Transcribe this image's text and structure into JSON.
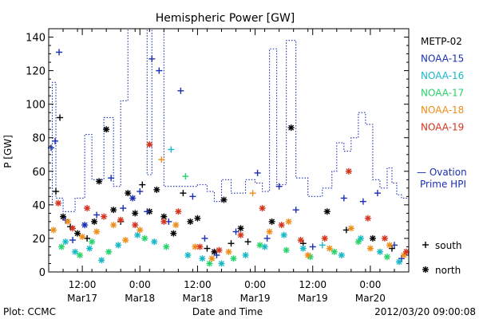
{
  "chart_data": {
    "type": "scatter",
    "title": "Hemispheric Power [GW]",
    "xlabel": "Date and Time",
    "ylabel": "P [GW]",
    "ylim": [
      0,
      145
    ],
    "yticks": [
      0,
      20,
      40,
      60,
      80,
      100,
      120,
      140
    ],
    "xlim": [
      "2012-03-17T05:00",
      "2012-03-20T08:00"
    ],
    "xticks": [
      {
        "time": "2012-03-17T12:00",
        "top": "12:00",
        "bottom": "Mar17"
      },
      {
        "time": "2012-03-18T00:00",
        "top": "0:00",
        "bottom": "Mar18"
      },
      {
        "time": "2012-03-18T12:00",
        "top": "12:00",
        "bottom": "Mar18"
      },
      {
        "time": "2012-03-19T00:00",
        "top": "0:00",
        "bottom": "Mar19"
      },
      {
        "time": "2012-03-19T12:00",
        "top": "12:00",
        "bottom": "Mar19"
      },
      {
        "time": "2012-03-20T00:00",
        "top": "0:00",
        "bottom": "Mar20"
      }
    ],
    "legend_placement": "right",
    "series": [
      {
        "name": "METP-02",
        "color": "#000000",
        "points": [
          [
            "2012-03-17T06:30",
            48,
            "s"
          ],
          [
            "2012-03-17T07:20",
            92,
            "s"
          ],
          [
            "2012-03-17T08:00",
            33,
            "n"
          ],
          [
            "2012-03-17T09:30",
            27,
            "s"
          ],
          [
            "2012-03-17T11:00",
            23,
            "n"
          ],
          [
            "2012-03-17T13:00",
            20,
            "s"
          ],
          [
            "2012-03-17T14:30",
            30,
            "n"
          ],
          [
            "2012-03-17T15:30",
            54,
            "n"
          ],
          [
            "2012-03-17T17:00",
            85,
            "n"
          ],
          [
            "2012-03-17T18:30",
            37,
            "n"
          ],
          [
            "2012-03-17T20:00",
            30,
            "s"
          ],
          [
            "2012-03-17T21:30",
            47,
            "n"
          ],
          [
            "2012-03-17T23:00",
            35,
            "n"
          ],
          [
            "2012-03-18T00:30",
            52,
            "s"
          ],
          [
            "2012-03-18T02:00",
            36,
            "n"
          ],
          [
            "2012-03-18T03:30",
            49,
            "n"
          ],
          [
            "2012-03-18T05:00",
            33,
            "n"
          ],
          [
            "2012-03-18T07:00",
            23,
            "n"
          ],
          [
            "2012-03-18T09:00",
            47,
            "s"
          ],
          [
            "2012-03-18T10:30",
            30,
            "n"
          ],
          [
            "2012-03-18T12:00",
            32,
            "n"
          ],
          [
            "2012-03-18T14:00",
            14,
            "s"
          ],
          [
            "2012-03-18T15:30",
            12,
            "n"
          ],
          [
            "2012-03-18T17:30",
            43,
            "n"
          ],
          [
            "2012-03-18T19:00",
            17,
            "s"
          ],
          [
            "2012-03-18T21:00",
            26,
            "n"
          ],
          [
            "2012-03-18T22:30",
            18,
            "s"
          ],
          [
            "2012-03-19T03:30",
            30,
            "n"
          ],
          [
            "2012-03-19T07:30",
            86,
            "n"
          ],
          [
            "2012-03-19T10:00",
            17,
            "s"
          ],
          [
            "2012-03-19T15:00",
            36,
            "n"
          ],
          [
            "2012-03-19T19:00",
            25,
            "s"
          ],
          [
            "2012-03-20T00:30",
            20,
            "n"
          ],
          [
            "2012-03-20T04:30",
            14,
            "s"
          ]
        ]
      },
      {
        "name": "NOAA-15",
        "color": "#1a2fb4",
        "points": [
          [
            "2012-03-17T05:30",
            74,
            "s"
          ],
          [
            "2012-03-17T06:20",
            78,
            "s"
          ],
          [
            "2012-03-17T07:10",
            131,
            "s"
          ],
          [
            "2012-03-17T08:30",
            31,
            "s"
          ],
          [
            "2012-03-17T10:00",
            19,
            "s"
          ],
          [
            "2012-03-17T12:30",
            28,
            "n"
          ],
          [
            "2012-03-17T15:00",
            34,
            "s"
          ],
          [
            "2012-03-17T18:00",
            56,
            "s"
          ],
          [
            "2012-03-17T20:30",
            38,
            "s"
          ],
          [
            "2012-03-17T22:30",
            44,
            "n"
          ],
          [
            "2012-03-18T00:00",
            48,
            "s"
          ],
          [
            "2012-03-18T01:30",
            36,
            "s"
          ],
          [
            "2012-03-18T02:30",
            127,
            "s"
          ],
          [
            "2012-03-18T04:00",
            120,
            "s"
          ],
          [
            "2012-03-18T06:00",
            30,
            "s"
          ],
          [
            "2012-03-18T08:30",
            108,
            "s"
          ],
          [
            "2012-03-18T11:00",
            45,
            "s"
          ],
          [
            "2012-03-18T13:30",
            20,
            "s"
          ],
          [
            "2012-03-18T16:00",
            10,
            "s"
          ],
          [
            "2012-03-18T20:00",
            24,
            "s"
          ],
          [
            "2012-03-19T00:30",
            59,
            "s"
          ],
          [
            "2012-03-19T02:30",
            20,
            "s"
          ],
          [
            "2012-03-19T05:00",
            51,
            "s"
          ],
          [
            "2012-03-19T08:30",
            37,
            "s"
          ],
          [
            "2012-03-19T12:00",
            15,
            "s"
          ],
          [
            "2012-03-19T18:30",
            44,
            "s"
          ],
          [
            "2012-03-19T22:30",
            42,
            "s"
          ],
          [
            "2012-03-20T01:30",
            47,
            "s"
          ],
          [
            "2012-03-20T05:00",
            16,
            "s"
          ],
          [
            "2012-03-20T06:30",
            8,
            "s"
          ]
        ]
      },
      {
        "name": "NOAA-16",
        "color": "#17b9c8",
        "points": [
          [
            "2012-03-17T08:30",
            18,
            "n"
          ],
          [
            "2012-03-17T10:30",
            12,
            "n"
          ],
          [
            "2012-03-17T13:30",
            14,
            "n"
          ],
          [
            "2012-03-17T16:00",
            7,
            "n"
          ],
          [
            "2012-03-17T19:30",
            16,
            "n"
          ],
          [
            "2012-03-17T23:30",
            22,
            "n"
          ],
          [
            "2012-03-18T03:00",
            18,
            "n"
          ],
          [
            "2012-03-18T06:30",
            73,
            "s"
          ],
          [
            "2012-03-18T10:00",
            10,
            "n"
          ],
          [
            "2012-03-18T13:00",
            8,
            "n"
          ],
          [
            "2012-03-18T17:00",
            5,
            "n"
          ],
          [
            "2012-03-18T22:00",
            10,
            "n"
          ],
          [
            "2012-03-19T02:00",
            15,
            "n"
          ],
          [
            "2012-03-19T06:00",
            22,
            "n"
          ],
          [
            "2012-03-19T10:00",
            14,
            "n"
          ],
          [
            "2012-03-19T14:00",
            16,
            "s"
          ],
          [
            "2012-03-19T18:00",
            10,
            "n"
          ],
          [
            "2012-03-19T22:00",
            20,
            "n"
          ],
          [
            "2012-03-20T02:00",
            12,
            "n"
          ],
          [
            "2012-03-20T06:00",
            6,
            "n"
          ]
        ]
      },
      {
        "name": "NOAA-17",
        "color": "#27d36a",
        "points": [
          [
            "2012-03-17T07:40",
            15,
            "n"
          ],
          [
            "2012-03-17T11:30",
            10,
            "n"
          ],
          [
            "2012-03-17T14:00",
            18,
            "n"
          ],
          [
            "2012-03-17T17:30",
            12,
            "n"
          ],
          [
            "2012-03-18T01:00",
            20,
            "n"
          ],
          [
            "2012-03-18T05:30",
            15,
            "n"
          ],
          [
            "2012-03-18T09:30",
            57,
            "s"
          ],
          [
            "2012-03-18T14:30",
            5,
            "n"
          ],
          [
            "2012-03-18T19:30",
            8,
            "n"
          ],
          [
            "2012-03-19T01:00",
            16,
            "n"
          ],
          [
            "2012-03-19T06:30",
            13,
            "n"
          ],
          [
            "2012-03-19T11:30",
            9,
            "n"
          ],
          [
            "2012-03-19T16:30",
            12,
            "n"
          ],
          [
            "2012-03-19T21:30",
            18,
            "n"
          ],
          [
            "2012-03-20T03:30",
            9,
            "n"
          ]
        ]
      },
      {
        "name": "NOAA-18",
        "color": "#ee8d1a",
        "points": [
          [
            "2012-03-17T06:00",
            25,
            "n"
          ],
          [
            "2012-03-17T09:00",
            30,
            "n"
          ],
          [
            "2012-03-17T12:00",
            21,
            "n"
          ],
          [
            "2012-03-17T15:00",
            24,
            "n"
          ],
          [
            "2012-03-17T18:30",
            28,
            "n"
          ],
          [
            "2012-03-17T21:00",
            19,
            "n"
          ],
          [
            "2012-03-18T00:00",
            25,
            "n"
          ],
          [
            "2012-03-18T04:30",
            67,
            "s"
          ],
          [
            "2012-03-18T07:30",
            28,
            "n"
          ],
          [
            "2012-03-18T11:30",
            15,
            "n"
          ],
          [
            "2012-03-18T15:00",
            8,
            "n"
          ],
          [
            "2012-03-18T18:30",
            12,
            "n"
          ],
          [
            "2012-03-18T23:30",
            47,
            "s"
          ],
          [
            "2012-03-19T03:00",
            24,
            "n"
          ],
          [
            "2012-03-19T07:00",
            30,
            "n"
          ],
          [
            "2012-03-19T11:00",
            10,
            "n"
          ],
          [
            "2012-03-19T15:30",
            14,
            "n"
          ],
          [
            "2012-03-19T20:00",
            26,
            "n"
          ],
          [
            "2012-03-20T00:00",
            14,
            "n"
          ],
          [
            "2012-03-20T04:00",
            16,
            "n"
          ],
          [
            "2012-03-20T07:00",
            10,
            "n"
          ]
        ]
      },
      {
        "name": "NOAA-19",
        "color": "#d6341e",
        "points": [
          [
            "2012-03-17T07:00",
            41,
            "n"
          ],
          [
            "2012-03-17T10:00",
            26,
            "n"
          ],
          [
            "2012-03-17T13:00",
            38,
            "n"
          ],
          [
            "2012-03-17T16:30",
            33,
            "n"
          ],
          [
            "2012-03-17T20:00",
            31,
            "n"
          ],
          [
            "2012-03-17T23:00",
            28,
            "n"
          ],
          [
            "2012-03-18T02:00",
            76,
            "n"
          ],
          [
            "2012-03-18T05:00",
            30,
            "n"
          ],
          [
            "2012-03-18T08:00",
            36,
            "n"
          ],
          [
            "2012-03-18T12:30",
            15,
            "n"
          ],
          [
            "2012-03-18T16:30",
            13,
            "n"
          ],
          [
            "2012-03-18T21:00",
            22,
            "n"
          ],
          [
            "2012-03-19T01:30",
            38,
            "n"
          ],
          [
            "2012-03-19T05:30",
            28,
            "n"
          ],
          [
            "2012-03-19T09:30",
            19,
            "n"
          ],
          [
            "2012-03-19T14:30",
            20,
            "n"
          ],
          [
            "2012-03-19T19:30",
            60,
            "n"
          ],
          [
            "2012-03-19T23:30",
            32,
            "n"
          ],
          [
            "2012-03-20T03:00",
            20,
            "n"
          ],
          [
            "2012-03-20T07:30",
            12,
            "n"
          ]
        ]
      }
    ],
    "ovation": {
      "name": "Ovation Prime HPI",
      "name_line1": "— Ovation",
      "name_line2": "Prime HPI",
      "color": "#1a2fb4",
      "style": "dotted-step",
      "points": [
        [
          "2012-03-17T05:00",
          40
        ],
        [
          "2012-03-17T05:45",
          113
        ],
        [
          "2012-03-17T06:30",
          44
        ],
        [
          "2012-03-17T08:00",
          36
        ],
        [
          "2012-03-17T10:30",
          44
        ],
        [
          "2012-03-17T12:30",
          82
        ],
        [
          "2012-03-17T14:00",
          55
        ],
        [
          "2012-03-17T16:30",
          92
        ],
        [
          "2012-03-17T18:30",
          51
        ],
        [
          "2012-03-17T20:00",
          102
        ],
        [
          "2012-03-17T21:30",
          145
        ],
        [
          "2012-03-17T23:30",
          145
        ],
        [
          "2012-03-18T01:30",
          58
        ],
        [
          "2012-03-18T02:30",
          145
        ],
        [
          "2012-03-18T03:30",
          145
        ],
        [
          "2012-03-18T05:00",
          51
        ],
        [
          "2012-03-18T12:00",
          52
        ],
        [
          "2012-03-18T14:00",
          48
        ],
        [
          "2012-03-18T15:30",
          42
        ],
        [
          "2012-03-18T17:00",
          55
        ],
        [
          "2012-03-18T19:00",
          47
        ],
        [
          "2012-03-18T22:00",
          55
        ],
        [
          "2012-03-19T00:00",
          53
        ],
        [
          "2012-03-19T01:30",
          48
        ],
        [
          "2012-03-19T03:00",
          133
        ],
        [
          "2012-03-19T04:30",
          52
        ],
        [
          "2012-03-19T06:30",
          138
        ],
        [
          "2012-03-19T08:30",
          56
        ],
        [
          "2012-03-19T11:00",
          45
        ],
        [
          "2012-03-19T14:00",
          50
        ],
        [
          "2012-03-19T16:00",
          60
        ],
        [
          "2012-03-19T17:00",
          77
        ],
        [
          "2012-03-19T18:30",
          72
        ],
        [
          "2012-03-19T20:00",
          80
        ],
        [
          "2012-03-19T21:30",
          95
        ],
        [
          "2012-03-19T23:00",
          88
        ],
        [
          "2012-03-20T00:30",
          55
        ],
        [
          "2012-03-20T02:00",
          50
        ],
        [
          "2012-03-20T03:30",
          62
        ],
        [
          "2012-03-20T04:30",
          53
        ],
        [
          "2012-03-20T05:30",
          46
        ],
        [
          "2012-03-20T06:30",
          44
        ],
        [
          "2012-03-20T08:00",
          44
        ]
      ]
    },
    "markers": {
      "south_symbol": "+",
      "south_label": "south",
      "north_symbol": "*",
      "north_label": "north"
    }
  },
  "footer": {
    "left": "Plot: CCMC",
    "right": "2012/03/20 09:00:08"
  }
}
